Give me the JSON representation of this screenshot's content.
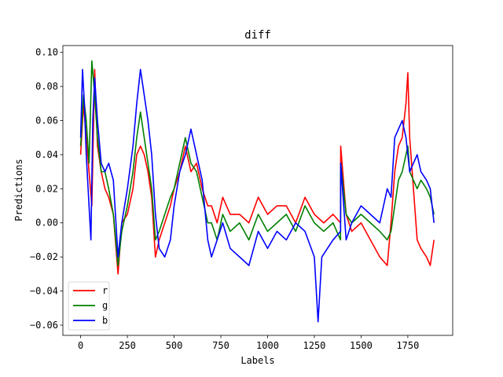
{
  "chart_data": {
    "type": "line",
    "title": "diff",
    "xlabel": "Labels",
    "ylabel": "Predictions",
    "xlim": [
      -95,
      1990
    ],
    "ylim": [
      -0.066,
      0.104
    ],
    "xticks": [
      0,
      250,
      500,
      750,
      1000,
      1250,
      1500,
      1750
    ],
    "yticks": [
      -0.06,
      -0.04,
      -0.02,
      0.0,
      0.02,
      0.04,
      0.06,
      0.08,
      0.1
    ],
    "ytick_labels": [
      "−0.06",
      "−0.04",
      "−0.02",
      "0.00",
      "0.02",
      "0.04",
      "0.06",
      "0.08",
      "0.10"
    ],
    "legend": {
      "position": "lower-left"
    },
    "grid": false,
    "series": [
      {
        "name": "r",
        "color": "#ff0000",
        "x": [
          0,
          15,
          30,
          45,
          60,
          75,
          90,
          110,
          130,
          150,
          175,
          200,
          220,
          250,
          280,
          300,
          320,
          340,
          360,
          380,
          400,
          420,
          450,
          480,
          500,
          530,
          560,
          590,
          620,
          650,
          680,
          700,
          730,
          760,
          800,
          850,
          900,
          950,
          1000,
          1050,
          1100,
          1150,
          1200,
          1250,
          1300,
          1350,
          1390,
          1391,
          1420,
          1450,
          1500,
          1550,
          1600,
          1640,
          1660,
          1680,
          1700,
          1720,
          1740,
          1750,
          1760,
          1780,
          1800,
          1820,
          1850,
          1870,
          1890
        ],
        "values": [
          0.04,
          0.07,
          0.05,
          0.03,
          0.01,
          0.09,
          0.045,
          0.03,
          0.02,
          0.015,
          0.005,
          -0.03,
          0.0,
          0.005,
          0.02,
          0.04,
          0.045,
          0.04,
          0.03,
          0.015,
          -0.02,
          -0.01,
          0.0,
          0.01,
          0.02,
          0.03,
          0.045,
          0.03,
          0.035,
          0.02,
          0.01,
          0.01,
          0.0,
          0.015,
          0.005,
          0.005,
          0.0,
          0.015,
          0.005,
          0.01,
          0.01,
          0.0,
          0.015,
          0.005,
          0.0,
          0.005,
          0.0,
          0.045,
          0.005,
          -0.005,
          0.0,
          -0.01,
          -0.02,
          -0.025,
          0.0,
          0.03,
          0.045,
          0.05,
          0.07,
          0.088,
          0.05,
          0.02,
          -0.01,
          -0.015,
          -0.02,
          -0.025,
          -0.01
        ]
      },
      {
        "name": "g",
        "color": "#008000",
        "x": [
          0,
          15,
          30,
          45,
          60,
          75,
          90,
          110,
          130,
          150,
          175,
          200,
          220,
          250,
          280,
          300,
          320,
          340,
          360,
          380,
          400,
          420,
          450,
          480,
          500,
          530,
          560,
          590,
          620,
          650,
          680,
          700,
          730,
          760,
          800,
          850,
          900,
          950,
          1000,
          1050,
          1100,
          1150,
          1200,
          1250,
          1300,
          1350,
          1390,
          1391,
          1420,
          1450,
          1500,
          1550,
          1600,
          1640,
          1660,
          1680,
          1700,
          1720,
          1740,
          1750,
          1760,
          1780,
          1800,
          1820,
          1850,
          1870,
          1890
        ],
        "values": [
          0.045,
          0.075,
          0.06,
          0.035,
          0.095,
          0.075,
          0.05,
          0.03,
          0.03,
          0.02,
          0.005,
          -0.025,
          -0.005,
          0.01,
          0.03,
          0.05,
          0.065,
          0.05,
          0.035,
          0.02,
          -0.01,
          -0.005,
          0.005,
          0.015,
          0.02,
          0.035,
          0.05,
          0.035,
          0.03,
          0.015,
          0.0,
          0.0,
          -0.01,
          0.005,
          -0.005,
          0.0,
          -0.01,
          0.005,
          -0.005,
          0.0,
          0.005,
          -0.005,
          0.01,
          0.0,
          -0.005,
          0.0,
          -0.01,
          0.035,
          0.005,
          0.0,
          0.005,
          0.0,
          -0.005,
          -0.01,
          -0.005,
          0.01,
          0.025,
          0.03,
          0.04,
          0.045,
          0.03,
          0.025,
          0.02,
          0.025,
          0.02,
          0.015,
          0.005
        ]
      },
      {
        "name": "b",
        "color": "#0000ff",
        "x": [
          0,
          10,
          20,
          30,
          45,
          55,
          65,
          75,
          90,
          110,
          130,
          150,
          175,
          200,
          220,
          250,
          280,
          300,
          320,
          340,
          360,
          380,
          400,
          420,
          450,
          480,
          500,
          530,
          560,
          590,
          620,
          650,
          680,
          700,
          730,
          760,
          800,
          850,
          900,
          950,
          1000,
          1050,
          1100,
          1150,
          1200,
          1250,
          1270,
          1290,
          1320,
          1350,
          1390,
          1391,
          1420,
          1450,
          1500,
          1550,
          1600,
          1640,
          1660,
          1680,
          1700,
          1720,
          1740,
          1750,
          1760,
          1780,
          1800,
          1820,
          1850,
          1870,
          1890
        ],
        "values": [
          0.05,
          0.09,
          0.07,
          0.04,
          0.01,
          -0.01,
          0.06,
          0.085,
          0.06,
          0.035,
          0.03,
          0.035,
          0.025,
          -0.02,
          0.0,
          0.02,
          0.045,
          0.07,
          0.09,
          0.075,
          0.06,
          0.04,
          0.005,
          -0.015,
          -0.02,
          -0.01,
          0.01,
          0.03,
          0.04,
          0.055,
          0.04,
          0.025,
          -0.01,
          -0.02,
          -0.01,
          0.0,
          -0.015,
          -0.02,
          -0.025,
          -0.005,
          -0.015,
          -0.005,
          -0.01,
          0.0,
          -0.005,
          -0.02,
          -0.058,
          -0.02,
          -0.015,
          -0.01,
          -0.005,
          0.035,
          -0.01,
          0.0,
          0.01,
          0.005,
          0.0,
          0.02,
          0.015,
          0.05,
          0.055,
          0.06,
          0.05,
          0.04,
          0.03,
          0.035,
          0.04,
          0.03,
          0.025,
          0.02,
          0.0
        ]
      }
    ]
  }
}
